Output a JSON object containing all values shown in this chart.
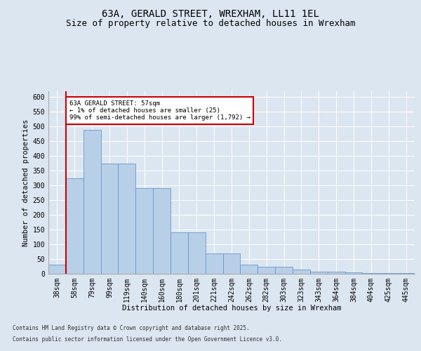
{
  "title": "63A, GERALD STREET, WREXHAM, LL11 1EL",
  "subtitle": "Size of property relative to detached houses in Wrexham",
  "xlabel": "Distribution of detached houses by size in Wrexham",
  "ylabel": "Number of detached properties",
  "footer_line1": "Contains HM Land Registry data © Crown copyright and database right 2025.",
  "footer_line2": "Contains public sector information licensed under the Open Government Licence v3.0.",
  "categories": [
    "38sqm",
    "58sqm",
    "79sqm",
    "99sqm",
    "119sqm",
    "140sqm",
    "160sqm",
    "180sqm",
    "201sqm",
    "221sqm",
    "242sqm",
    "262sqm",
    "282sqm",
    "303sqm",
    "323sqm",
    "343sqm",
    "364sqm",
    "384sqm",
    "404sqm",
    "425sqm",
    "445sqm"
  ],
  "values": [
    30,
    325,
    490,
    375,
    375,
    290,
    290,
    140,
    140,
    70,
    70,
    30,
    25,
    25,
    15,
    8,
    8,
    5,
    3,
    3,
    3
  ],
  "bar_color": "#b8cfe8",
  "bar_edge_color": "#6699cc",
  "marker_line_color": "#cc0000",
  "annotation_text": "63A GERALD STREET: 57sqm\n← 1% of detached houses are smaller (25)\n99% of semi-detached houses are larger (1,792) →",
  "annotation_edge_color": "#cc0000",
  "ylim": [
    0,
    620
  ],
  "yticks": [
    0,
    50,
    100,
    150,
    200,
    250,
    300,
    350,
    400,
    450,
    500,
    550,
    600
  ],
  "bg_color": "#dce6f1",
  "title_fontsize": 10,
  "subtitle_fontsize": 9,
  "axis_label_fontsize": 7.5,
  "tick_fontsize": 7,
  "footer_fontsize": 5.5
}
